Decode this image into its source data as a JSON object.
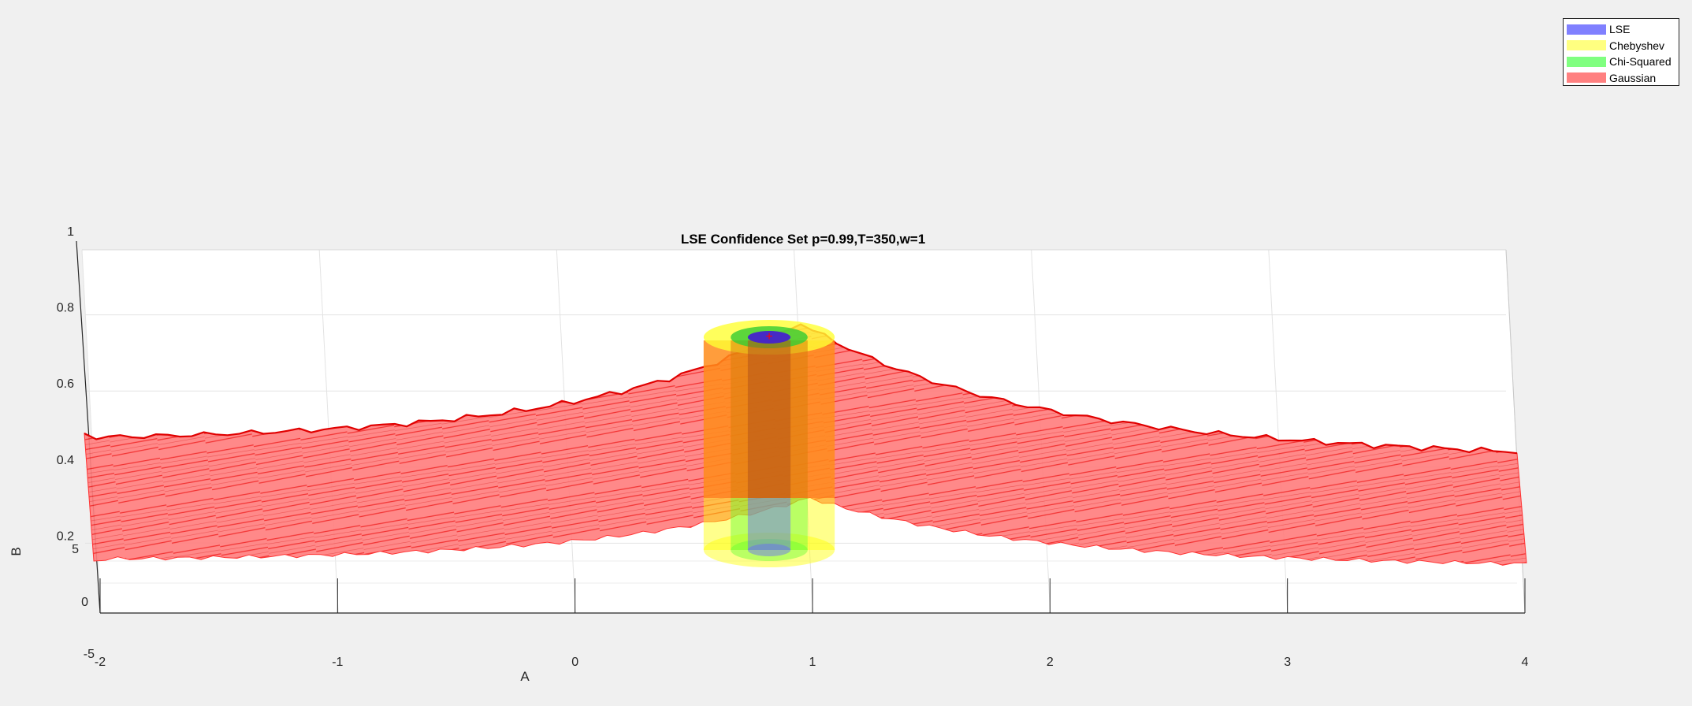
{
  "chart_data": {
    "type": "3d-surface",
    "title": "LSE Confidence Set p=0.99,T=350,w=1",
    "xlabel": "A",
    "ylabel": "B",
    "x_ticks": [
      "-2",
      "-1",
      "0",
      "1",
      "2",
      "3",
      "4"
    ],
    "x_range": [
      -2,
      4
    ],
    "y_ticks": [
      "-5",
      "0",
      "5"
    ],
    "z_ticks": [
      "0.2",
      "0.4",
      "0.6",
      "0.8",
      "1"
    ],
    "z_range": [
      0,
      1
    ],
    "grid": true,
    "legend_position": "top-right",
    "center": {
      "A": 1,
      "B": 0
    },
    "series": [
      {
        "name": "LSE",
        "color": "#8080ff",
        "shape": "cylinder",
        "center_A": 1.0,
        "half_width_A": 0.15
      },
      {
        "name": "Chebyshev",
        "color": "#ffff80",
        "shape": "cylinder",
        "center_A": 1.0,
        "half_width_A": 0.46
      },
      {
        "name": "Chi-Squared",
        "color": "#80ff80",
        "shape": "cylinder",
        "center_A": 1.0,
        "half_width_A": 0.27
      },
      {
        "name": "Gaussian",
        "color": "#ff8080",
        "shape": "surface",
        "A_range": [
          -2,
          4
        ]
      }
    ]
  }
}
